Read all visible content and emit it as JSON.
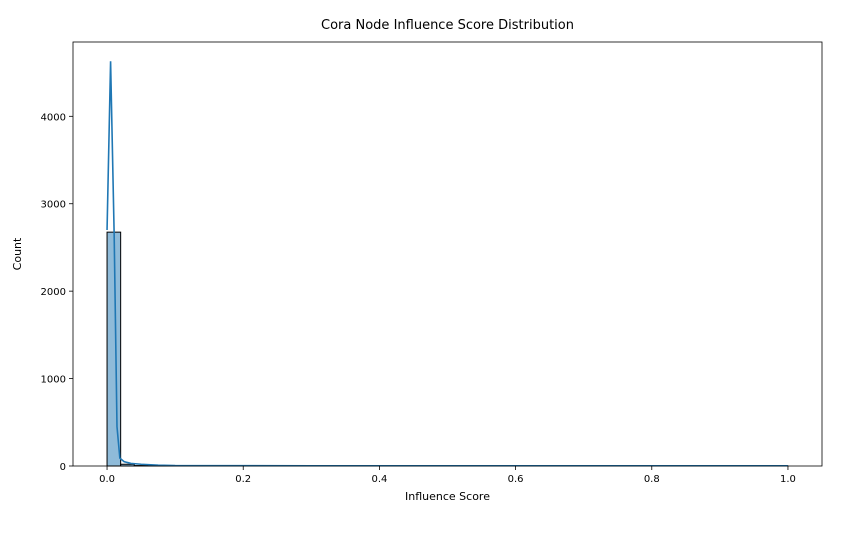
{
  "chart_data": {
    "type": "bar",
    "title": "Cora Node Influence Score Distribution",
    "xlabel": "Influence Score",
    "ylabel": "Count",
    "xlim": [
      -0.05,
      1.05
    ],
    "ylim": [
      0,
      4850
    ],
    "x_ticks": [
      0.0,
      0.2,
      0.4,
      0.6,
      0.8,
      1.0
    ],
    "x_tick_labels": [
      "0.0",
      "0.2",
      "0.4",
      "0.6",
      "0.8",
      "1.0"
    ],
    "y_ticks": [
      0,
      1000,
      2000,
      3000,
      4000
    ],
    "y_tick_labels": [
      "0",
      "1000",
      "2000",
      "3000",
      "4000"
    ],
    "bins": [
      {
        "start": 0.0,
        "end": 0.02,
        "count": 2675
      },
      {
        "start": 0.02,
        "end": 0.04,
        "count": 20
      },
      {
        "start": 0.04,
        "end": 0.06,
        "count": 5
      },
      {
        "start": 0.06,
        "end": 0.08,
        "count": 3
      },
      {
        "start": 0.08,
        "end": 0.1,
        "count": 2
      },
      {
        "start": 0.1,
        "end": 0.12,
        "count": 1
      },
      {
        "start": 0.12,
        "end": 0.14,
        "count": 1
      },
      {
        "start": 0.14,
        "end": 0.16,
        "count": 1
      },
      {
        "start": 0.2,
        "end": 0.22,
        "count": 1
      },
      {
        "start": 0.98,
        "end": 1.0,
        "count": 1
      }
    ],
    "kde": {
      "x": [
        0.0,
        0.0052,
        0.0105,
        0.0146,
        0.0188,
        0.025,
        0.035,
        0.05,
        0.075,
        0.1,
        0.15,
        0.2,
        0.3,
        0.4,
        0.5,
        0.6,
        0.7,
        0.8,
        0.9,
        1.0
      ],
      "y": [
        2700,
        4630,
        2630,
        450,
        90,
        50,
        30,
        20,
        10,
        5,
        4,
        4,
        3,
        3,
        3,
        3,
        3,
        3,
        3,
        3
      ]
    },
    "colors": {
      "bar_fill": "#1f77b4",
      "bar_fill_opacity": 0.5,
      "bar_edge": "#000000",
      "kde_line": "#1f77b4"
    },
    "grid": false,
    "legend": "none"
  }
}
